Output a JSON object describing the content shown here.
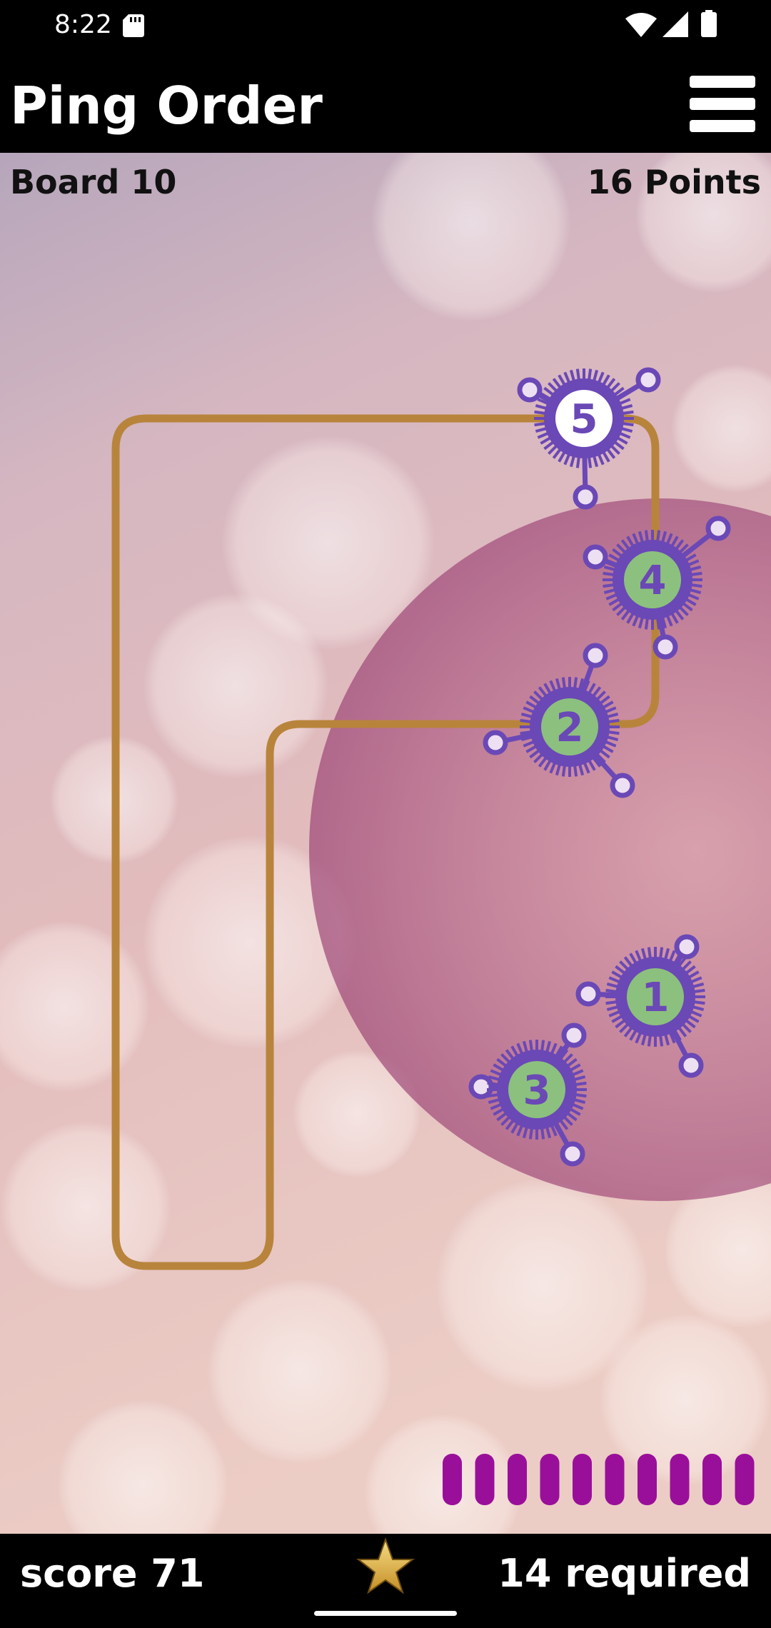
{
  "status_bar": {
    "time": "8:22",
    "icons": [
      "sd-card-icon",
      "wifi-icon",
      "signal-icon",
      "battery-icon"
    ]
  },
  "app_bar": {
    "title": "Ping Order",
    "menu_icon": "hamburger-menu-icon"
  },
  "board": {
    "board_label": "Board 10",
    "points_label": "16 Points",
    "nodes": [
      {
        "number": "1",
        "state": "green"
      },
      {
        "number": "2",
        "state": "green"
      },
      {
        "number": "3",
        "state": "green"
      },
      {
        "number": "4",
        "state": "green"
      },
      {
        "number": "5",
        "state": "white"
      }
    ],
    "progress_segments_remaining": 10,
    "colors": {
      "path": "#b8843c",
      "node_ring": "#6a48b6",
      "node_green": "#8cc07e",
      "node_white": "#ffffff",
      "pulse": "#a04878",
      "progress": "#9a0f9a"
    }
  },
  "bottom_bar": {
    "score": "score 71",
    "star_icon": "star-icon",
    "required": "14 required"
  }
}
